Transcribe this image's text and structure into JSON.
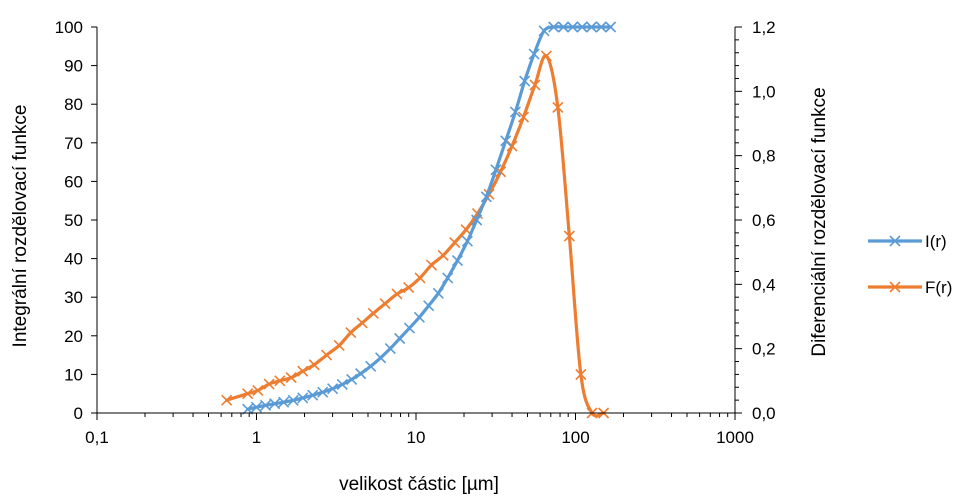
{
  "chart_data": {
    "type": "line",
    "xlabel": "velikost částic [µm]",
    "ylabel_left": "Integrální rozdělovací funkce",
    "ylabel_right": "Diferenciální rozdělovací funkce",
    "x_scale": "log",
    "xlim": [
      0.1,
      1000
    ],
    "ylim_left": [
      0,
      100
    ],
    "ylim_right": [
      0,
      1.2
    ],
    "x_ticks": [
      "0,1",
      "1",
      "10",
      "100",
      "1000"
    ],
    "y_left_ticks": [
      "0",
      "10",
      "20",
      "30",
      "40",
      "50",
      "60",
      "70",
      "80",
      "90",
      "100"
    ],
    "y_right_ticks": [
      "0,0",
      "0,2",
      "0,4",
      "0,6",
      "0,8",
      "1,0",
      "1,2"
    ],
    "grid": false,
    "legend_position": "right",
    "series": [
      {
        "name": "I(r)",
        "axis": "left",
        "color": "#5B9BD5",
        "marker": "x",
        "x": [
          0.88,
          1.0,
          1.14,
          1.3,
          1.48,
          1.7,
          1.95,
          2.25,
          2.6,
          3.0,
          3.45,
          3.95,
          4.5,
          5.2,
          6.0,
          6.9,
          7.9,
          9.1,
          10.5,
          12.0,
          13.8,
          15.8,
          18.2,
          21.0,
          24.0,
          27.6,
          31.7,
          36.5,
          42.0,
          48.0,
          55.0,
          63.5,
          73.0,
          84.0,
          96.0,
          110.0,
          126.0,
          145.0,
          166.0
        ],
        "y": [
          1.0,
          1.5,
          2.0,
          2.4,
          2.8,
          3.3,
          3.9,
          4.6,
          5.4,
          6.3,
          7.4,
          8.7,
          10.2,
          12.1,
          14.3,
          16.7,
          19.3,
          22.0,
          24.8,
          27.8,
          31.0,
          35.0,
          39.5,
          44.5,
          50.0,
          56.0,
          63.0,
          70.5,
          78.0,
          86.0,
          93.0,
          99.0,
          100.0,
          100.0,
          100.0,
          100.0,
          100.0,
          100.0,
          100.0
        ]
      },
      {
        "name": "F(r)",
        "axis": "right",
        "color": "#ED7D31",
        "marker": "x",
        "x": [
          0.65,
          0.88,
          1.02,
          1.2,
          1.4,
          1.65,
          1.95,
          2.3,
          2.75,
          3.3,
          3.9,
          4.6,
          5.4,
          6.4,
          7.6,
          9.0,
          10.6,
          12.5,
          14.8,
          17.5,
          20.6,
          24.3,
          28.7,
          33.9,
          40.0,
          47.2,
          55.7,
          65.7,
          77.5,
          91.5,
          108.0,
          127.0,
          150.0
        ],
        "y": [
          0.04,
          0.06,
          0.07,
          0.09,
          0.1,
          0.11,
          0.13,
          0.15,
          0.18,
          0.21,
          0.25,
          0.28,
          0.31,
          0.34,
          0.37,
          0.39,
          0.42,
          0.46,
          0.49,
          0.53,
          0.57,
          0.62,
          0.68,
          0.75,
          0.83,
          0.92,
          1.02,
          1.11,
          0.95,
          0.55,
          0.12,
          0.0,
          0.0
        ]
      }
    ]
  }
}
